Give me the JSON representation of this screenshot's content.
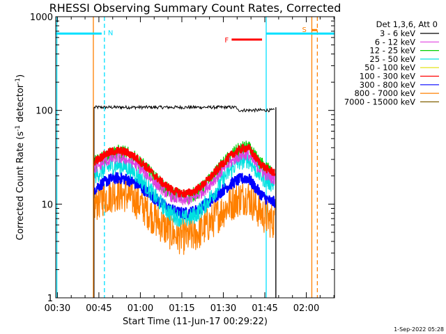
{
  "chart_data": {
    "type": "line",
    "title": "RHESSI Observing Summary Count Rates, Corrected",
    "xlabel": "Start Time (11-Jun-17 00:29:22)",
    "ylabel": "Corrected Count Rate (s",
    "ylabel_sup1": "-1",
    "ylabel_mid": " detector",
    "ylabel_sup2": "-1",
    "ylabel_end": ")",
    "y_scale": "log",
    "ylim": [
      1,
      1000
    ],
    "xlim_minutes": [
      29.4,
      130.2
    ],
    "x_ticks": [
      {
        "label": "00:30",
        "minute": 30
      },
      {
        "label": "00:45",
        "minute": 45
      },
      {
        "label": "01:00",
        "minute": 60
      },
      {
        "label": "01:15",
        "minute": 75
      },
      {
        "label": "01:30",
        "minute": 90
      },
      {
        "label": "01:45",
        "minute": 105
      },
      {
        "label": "02:00",
        "minute": 120
      }
    ],
    "y_ticks": [
      {
        "label": "1",
        "value": 1
      },
      {
        "label": "10",
        "value": 10
      },
      {
        "label": "100",
        "value": 100
      },
      {
        "label": "1000",
        "value": 1000
      }
    ],
    "legend_header": "Det 1,3,6, Att 0",
    "legend_placement": "right, outside plot",
    "data_window_minutes": [
      43,
      109
    ],
    "series": [
      {
        "name": "3 - 6 keV",
        "color": "#000000",
        "level": 108
      },
      {
        "name": "6 - 12 keV",
        "color": "#e040e0",
        "peaks": [
          31,
          34
        ],
        "trough": 11
      },
      {
        "name": "12 - 25 keV",
        "color": "#00d000",
        "peaks": [
          36,
          40
        ],
        "trough": 12
      },
      {
        "name": "25 - 50 keV",
        "color": "#00e0e0",
        "peaks": [
          26,
          30
        ],
        "trough": 7
      },
      {
        "name": "50 - 100 keV",
        "color": "#e0e000",
        "peaks": [
          0,
          0
        ],
        "trough": 0
      },
      {
        "name": "100 - 300 keV",
        "color": "#ff0000",
        "peaks": [
          37,
          40
        ],
        "trough": 13
      },
      {
        "name": "300 - 800 keV",
        "color": "#0000ff",
        "peaks": [
          19,
          19
        ],
        "trough": 8
      },
      {
        "name": "800 - 7000 keV",
        "color": "#ff8000",
        "peaks": [
          13,
          12
        ],
        "trough": 4.5
      },
      {
        "name": "7000 - 15000 keV",
        "color": "#806000",
        "peaks": [
          0,
          0
        ],
        "trough": 0
      }
    ],
    "annotations": [
      {
        "label": "N",
        "color": "#00e0ff",
        "minute": 47,
        "bar_minutes": [
          29.4,
          46
        ],
        "bar_value": 680
      },
      {
        "label": "F",
        "color": "#ff0000",
        "bar_minutes": [
          93,
          104
        ],
        "bar_value": 570
      },
      {
        "label": "S",
        "color": "#ff8000",
        "minute": 123,
        "bar_minutes": [
          122,
          124
        ],
        "bar_value": 720
      }
    ],
    "vertical_markers": [
      {
        "color": "#00e0ff",
        "minute": 29.8,
        "style": "solid"
      },
      {
        "color": "#00e0ff",
        "minute": 47,
        "style": "dashed"
      },
      {
        "color": "#ff8000",
        "minute": 43,
        "style": "solid"
      },
      {
        "color": "#00e0ff",
        "minute": 105.5,
        "style": "solid"
      },
      {
        "color": "#000000",
        "minute": 109,
        "style": "solid"
      },
      {
        "color": "#ff8000",
        "minute": 122,
        "style": "solid"
      },
      {
        "color": "#ff8000",
        "minute": 124,
        "style": "dashed"
      }
    ],
    "cyan_high_bar": [
      [
        29.4,
        46
      ],
      [
        105.5,
        130.2
      ]
    ],
    "grid": false
  },
  "footer_stamp": "1-Sep-2022 05:28"
}
